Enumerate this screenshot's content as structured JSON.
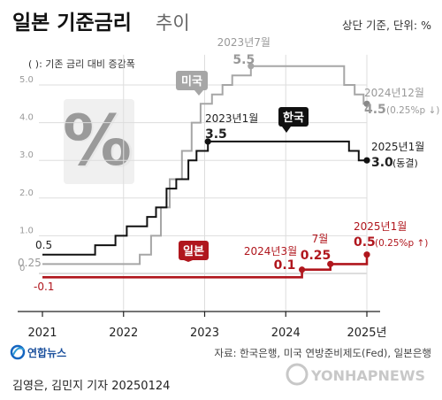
{
  "header": {
    "title_bold": "일본 기준금리",
    "title_light": "추이",
    "unit": "상단 기준, 단위: %",
    "legend_note": "( ): 기존 금리 대비 증감폭"
  },
  "footer": {
    "source": "자료: 한국은행, 미국 연방준비제도(Fed), 일본은행",
    "byline": "김영은, 김민지 기자  20250124",
    "logo_left": "연합뉴스",
    "logo_right": "YONHAPNEWS"
  },
  "colors": {
    "us": "#a6a6a6",
    "korea": "#111111",
    "japan": "#b0161d",
    "grid": "#dddddd",
    "axis": "#222222"
  },
  "icons": {
    "percent": "percent-icon",
    "logo": "yonhap-logo-icon"
  },
  "chart_data": {
    "type": "line",
    "x_ticks": [
      "2021",
      "2022",
      "2023",
      "2024",
      "2025년"
    ],
    "y_ticks": [
      "0",
      "1.0",
      "2.0",
      "3.0",
      "4.0",
      "5.0"
    ],
    "ylim": [
      -0.5,
      6.0
    ],
    "series": [
      {
        "name": "미국",
        "points": [
          [
            2021.0,
            0.25
          ],
          [
            2022.2,
            0.25
          ],
          [
            2022.2,
            0.5
          ],
          [
            2022.34,
            0.5
          ],
          [
            2022.34,
            1.0
          ],
          [
            2022.46,
            1.0
          ],
          [
            2022.46,
            1.75
          ],
          [
            2022.57,
            1.75
          ],
          [
            2022.57,
            2.5
          ],
          [
            2022.72,
            2.5
          ],
          [
            2022.72,
            3.25
          ],
          [
            2022.84,
            3.25
          ],
          [
            2022.84,
            4.0
          ],
          [
            2022.95,
            4.0
          ],
          [
            2022.95,
            4.5
          ],
          [
            2023.09,
            4.5
          ],
          [
            2023.09,
            4.75
          ],
          [
            2023.22,
            4.75
          ],
          [
            2023.22,
            5.0
          ],
          [
            2023.34,
            5.0
          ],
          [
            2023.34,
            5.25
          ],
          [
            2023.57,
            5.25
          ],
          [
            2023.57,
            5.5
          ],
          [
            2024.72,
            5.5
          ],
          [
            2024.72,
            5.0
          ],
          [
            2024.85,
            5.0
          ],
          [
            2024.85,
            4.75
          ],
          [
            2024.96,
            4.75
          ],
          [
            2024.96,
            4.5
          ],
          [
            2025.0,
            4.5
          ]
        ]
      },
      {
        "name": "한국",
        "points": [
          [
            2021.0,
            0.5
          ],
          [
            2021.65,
            0.5
          ],
          [
            2021.65,
            0.75
          ],
          [
            2021.9,
            0.75
          ],
          [
            2021.9,
            1.0
          ],
          [
            2022.04,
            1.0
          ],
          [
            2022.04,
            1.25
          ],
          [
            2022.29,
            1.25
          ],
          [
            2022.29,
            1.5
          ],
          [
            2022.4,
            1.5
          ],
          [
            2022.4,
            1.75
          ],
          [
            2022.53,
            1.75
          ],
          [
            2022.53,
            2.25
          ],
          [
            2022.65,
            2.25
          ],
          [
            2022.65,
            2.5
          ],
          [
            2022.8,
            2.5
          ],
          [
            2022.8,
            3.0
          ],
          [
            2022.9,
            3.0
          ],
          [
            2022.9,
            3.25
          ],
          [
            2023.04,
            3.25
          ],
          [
            2023.04,
            3.5
          ],
          [
            2024.78,
            3.5
          ],
          [
            2024.78,
            3.25
          ],
          [
            2024.9,
            3.25
          ],
          [
            2024.9,
            3.0
          ],
          [
            2025.0,
            3.0
          ]
        ]
      },
      {
        "name": "일본",
        "points": [
          [
            2021.0,
            -0.1
          ],
          [
            2024.2,
            -0.1
          ],
          [
            2024.2,
            0.1
          ],
          [
            2024.55,
            0.1
          ],
          [
            2024.55,
            0.25
          ],
          [
            2025.0,
            0.25
          ],
          [
            2025.0,
            0.5
          ]
        ]
      }
    ],
    "annotations": {
      "us_peak_date": "2023년7월",
      "us_peak_value": "5.5",
      "us_last_date": "2024년12월",
      "us_last_value": "4.5",
      "us_last_delta": "(0.25%p ↓)",
      "kr_peak_date": "2023년1월",
      "kr_peak_value": "3.5",
      "kr_last_date": "2025년1월",
      "kr_last_value": "3.0",
      "kr_last_delta": "(동결)",
      "kr_start_value": "0.5",
      "us_start_value": "0.25",
      "jp_start_value": "-0.1",
      "jp_first_date": "2024년3월",
      "jp_first_value": "0.1",
      "jp_second_date": "7월",
      "jp_second_value": "0.25",
      "jp_last_date": "2025년1월",
      "jp_last_value": "0.5",
      "jp_last_delta": "(0.25%p ↑)"
    }
  }
}
